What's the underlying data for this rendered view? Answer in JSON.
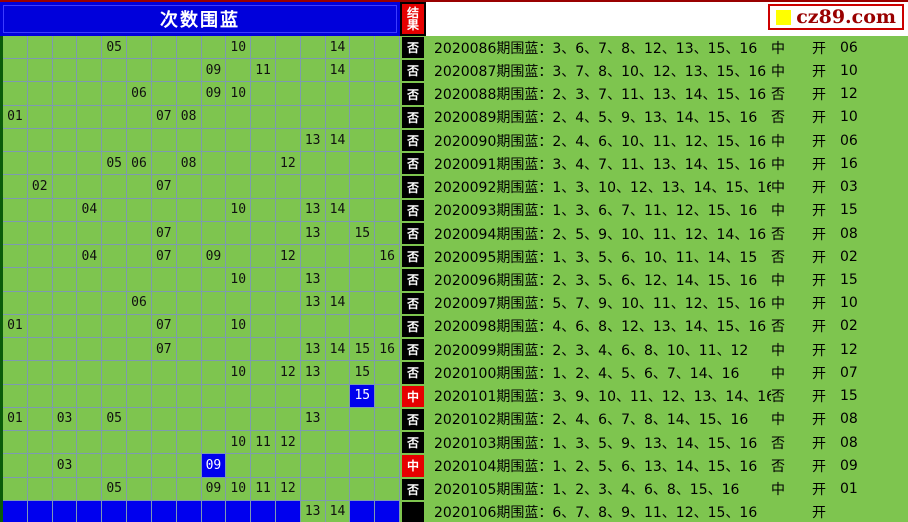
{
  "site": {
    "logo_text": "cz89.com"
  },
  "header": {
    "title": "次数围蓝",
    "result_col": "结果"
  },
  "labels": {
    "kai": "开",
    "hit": "中",
    "miss": "否"
  },
  "colors": {
    "background_green": "#7ec54f",
    "gridline": "#7d9ab0",
    "header_blue": "#0000db",
    "cell_blue": "#0000ee",
    "result_red": "#e60000",
    "result_black": "#000000",
    "top_border_red": "#990000",
    "logo_red": "#990000",
    "logo_yellow": "#ffff00",
    "left_border_green": "#0a5c0a"
  },
  "chart_data": {
    "type": "table",
    "title": "次数围蓝",
    "columns": 16,
    "rows": [
      {
        "period": "2020086",
        "cells": [
          {
            "c": 5,
            "n": "05"
          },
          {
            "c": 10,
            "n": "10"
          },
          {
            "c": 14,
            "n": "14"
          }
        ],
        "result": "否",
        "line": "2020086期围蓝：3、6、7、8、12、13、15、16",
        "verdict": "中",
        "open": "06"
      },
      {
        "period": "2020087",
        "cells": [
          {
            "c": 9,
            "n": "09"
          },
          {
            "c": 11,
            "n": "11"
          },
          {
            "c": 14,
            "n": "14"
          }
        ],
        "result": "否",
        "line": "2020087期围蓝：3、7、8、10、12、13、15、16",
        "verdict": "中",
        "open": "10"
      },
      {
        "period": "2020088",
        "cells": [
          {
            "c": 6,
            "n": "06"
          },
          {
            "c": 9,
            "n": "09"
          },
          {
            "c": 10,
            "n": "10"
          }
        ],
        "result": "否",
        "line": "2020088期围蓝：2、3、7、11、13、14、15、16",
        "verdict": "否",
        "open": "12"
      },
      {
        "period": "2020089",
        "cells": [
          {
            "c": 1,
            "n": "01"
          },
          {
            "c": 7,
            "n": "07"
          },
          {
            "c": 8,
            "n": "08"
          }
        ],
        "result": "否",
        "line": "2020089期围蓝：2、4、5、9、13、14、15、16",
        "verdict": "否",
        "open": "10"
      },
      {
        "period": "2020090",
        "cells": [
          {
            "c": 13,
            "n": "13"
          },
          {
            "c": 14,
            "n": "14"
          }
        ],
        "result": "否",
        "line": "2020090期围蓝：2、4、6、10、11、12、15、16",
        "verdict": "中",
        "open": "06"
      },
      {
        "period": "2020091",
        "cells": [
          {
            "c": 5,
            "n": "05"
          },
          {
            "c": 6,
            "n": "06"
          },
          {
            "c": 8,
            "n": "08"
          },
          {
            "c": 12,
            "n": "12"
          }
        ],
        "result": "否",
        "line": "2020091期围蓝：3、4、7、11、13、14、15、16",
        "verdict": "中",
        "open": "16"
      },
      {
        "period": "2020092",
        "cells": [
          {
            "c": 2,
            "n": "02"
          },
          {
            "c": 7,
            "n": "07"
          }
        ],
        "result": "否",
        "line": "2020092期围蓝：1、3、10、12、13、14、15、16",
        "verdict": "中",
        "open": "03"
      },
      {
        "period": "2020093",
        "cells": [
          {
            "c": 4,
            "n": "04"
          },
          {
            "c": 10,
            "n": "10"
          },
          {
            "c": 13,
            "n": "13"
          },
          {
            "c": 14,
            "n": "14"
          }
        ],
        "result": "否",
        "line": "2020093期围蓝：1、3、6、7、11、12、15、16",
        "verdict": "中",
        "open": "15"
      },
      {
        "period": "2020094",
        "cells": [
          {
            "c": 7,
            "n": "07"
          },
          {
            "c": 13,
            "n": "13"
          },
          {
            "c": 15,
            "n": "15"
          }
        ],
        "result": "否",
        "line": "2020094期围蓝：2、5、9、10、11、12、14、16",
        "verdict": "否",
        "open": "08"
      },
      {
        "period": "2020095",
        "cells": [
          {
            "c": 4,
            "n": "04"
          },
          {
            "c": 7,
            "n": "07"
          },
          {
            "c": 9,
            "n": "09"
          },
          {
            "c": 12,
            "n": "12"
          },
          {
            "c": 16,
            "n": "16"
          }
        ],
        "result": "否",
        "line": "2020095期围蓝：1、3、5、6、10、11、14、15",
        "verdict": "否",
        "open": "02"
      },
      {
        "period": "2020096",
        "cells": [
          {
            "c": 10,
            "n": "10"
          },
          {
            "c": 13,
            "n": "13"
          }
        ],
        "result": "否",
        "line": "2020096期围蓝：2、3、5、6、12、14、15、16",
        "verdict": "中",
        "open": "15"
      },
      {
        "period": "2020097",
        "cells": [
          {
            "c": 6,
            "n": "06"
          },
          {
            "c": 13,
            "n": "13"
          },
          {
            "c": 14,
            "n": "14"
          }
        ],
        "result": "否",
        "line": "2020097期围蓝：5、7、9、10、11、12、15、16",
        "verdict": "中",
        "open": "10"
      },
      {
        "period": "2020098",
        "cells": [
          {
            "c": 1,
            "n": "01"
          },
          {
            "c": 7,
            "n": "07"
          },
          {
            "c": 10,
            "n": "10"
          }
        ],
        "result": "否",
        "line": "2020098期围蓝：4、6、8、12、13、14、15、16",
        "verdict": "否",
        "open": "02"
      },
      {
        "period": "2020099",
        "cells": [
          {
            "c": 7,
            "n": "07"
          },
          {
            "c": 13,
            "n": "13"
          },
          {
            "c": 14,
            "n": "14"
          },
          {
            "c": 15,
            "n": "15"
          },
          {
            "c": 16,
            "n": "16"
          }
        ],
        "result": "否",
        "line": "2020099期围蓝：2、3、4、6、8、10、11、12",
        "verdict": "中",
        "open": "12"
      },
      {
        "period": "2020100",
        "cells": [
          {
            "c": 10,
            "n": "10"
          },
          {
            "c": 12,
            "n": "12"
          },
          {
            "c": 13,
            "n": "13"
          },
          {
            "c": 15,
            "n": "15"
          }
        ],
        "result": "否",
        "line": "2020100期围蓝：1、2、4、5、6、7、14、16",
        "verdict": "中",
        "open": "07"
      },
      {
        "period": "2020101",
        "cells": [
          {
            "c": 15,
            "n": "15",
            "blue": true
          }
        ],
        "result": "中",
        "line": "2020101期围蓝：3、9、10、11、12、13、14、16",
        "verdict": "否",
        "open": "15"
      },
      {
        "period": "2020102",
        "cells": [
          {
            "c": 1,
            "n": "01"
          },
          {
            "c": 3,
            "n": "03"
          },
          {
            "c": 5,
            "n": "05"
          },
          {
            "c": 13,
            "n": "13"
          }
        ],
        "result": "否",
        "line": "2020102期围蓝：2、4、6、7、8、14、15、16",
        "verdict": "中",
        "open": "08"
      },
      {
        "period": "2020103",
        "cells": [
          {
            "c": 10,
            "n": "10"
          },
          {
            "c": 11,
            "n": "11"
          },
          {
            "c": 12,
            "n": "12"
          }
        ],
        "result": "否",
        "line": "2020103期围蓝：1、3、5、9、13、14、15、16",
        "verdict": "否",
        "open": "08"
      },
      {
        "period": "2020104",
        "cells": [
          {
            "c": 3,
            "n": "03"
          },
          {
            "c": 9,
            "n": "09",
            "blue": true
          }
        ],
        "result": "中",
        "line": "2020104期围蓝：1、2、5、6、13、14、15、16",
        "verdict": "否",
        "open": "09"
      },
      {
        "period": "2020105",
        "cells": [
          {
            "c": 5,
            "n": "05"
          },
          {
            "c": 9,
            "n": "09"
          },
          {
            "c": 10,
            "n": "10"
          },
          {
            "c": 11,
            "n": "11"
          },
          {
            "c": 12,
            "n": "12"
          }
        ],
        "result": "否",
        "line": "2020105期围蓝：1、2、3、4、6、8、15、16",
        "verdict": "中",
        "open": "01"
      },
      {
        "period": "2020106",
        "cells": [
          {
            "c": 13,
            "n": "13"
          },
          {
            "c": 14,
            "n": "14"
          }
        ],
        "blue_cells": [
          1,
          2,
          3,
          4,
          5,
          6,
          7,
          8,
          9,
          10,
          11,
          12,
          15,
          16
        ],
        "result": "",
        "line": "2020106期围蓝：6、7、8、9、11、12、15、16",
        "verdict": "",
        "open": ""
      }
    ]
  }
}
